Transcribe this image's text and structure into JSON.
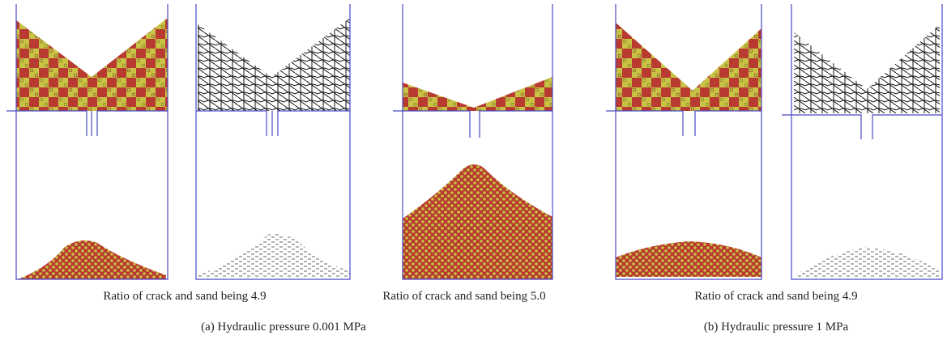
{
  "figure": {
    "panel_captions": [
      "Ratio of crack and sand being 4.9",
      "Ratio of crack and sand being 5.0",
      "Ratio of crack and sand being 4.9"
    ],
    "subfigure_captions": [
      "(a) Hydraulic pressure 0.001 MPa",
      "(b) Hydraulic pressure 1 MPa"
    ]
  }
}
